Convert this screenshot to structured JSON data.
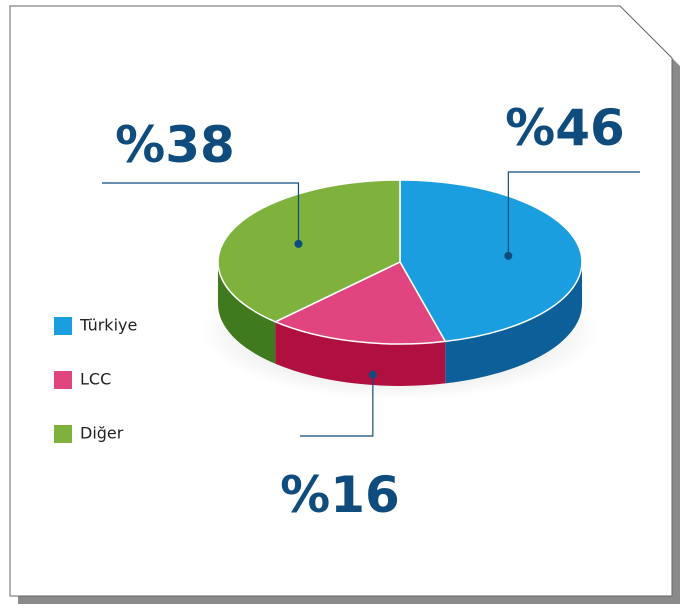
{
  "chart_data": {
    "type": "pie3d",
    "categories": [
      "Türkiye",
      "LCC",
      "Diğer"
    ],
    "values": [
      46,
      16,
      38
    ],
    "value_labels": [
      "%46",
      "%16",
      "%38"
    ],
    "colors": [
      "#1a9ee0",
      "#e0457f",
      "#7fb23c"
    ],
    "side_colors": [
      "#0d5f99",
      "#b0103f",
      "#3f7a1e"
    ]
  }
}
